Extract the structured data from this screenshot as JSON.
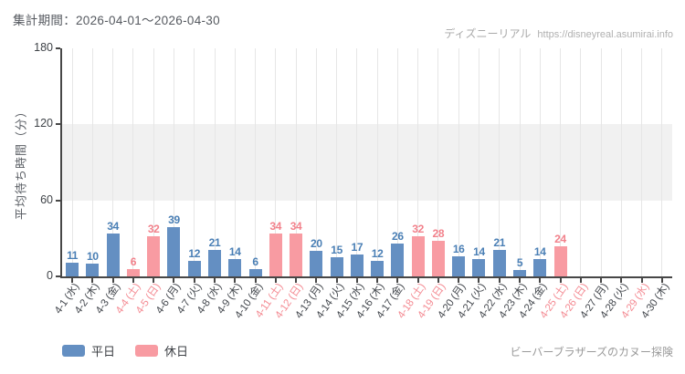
{
  "header": {
    "period_label": "集計期間：2026-04-01～2026-04-30",
    "watermark_brand": "ディズニーリアル",
    "watermark_url": "https://disneyreal.asumirai.info"
  },
  "footer": {
    "attraction_name": "ビーバーブラザーズのカヌー探険"
  },
  "legend": [
    {
      "label": "平日",
      "series": "weekday"
    },
    {
      "label": "休日",
      "series": "holiday"
    }
  ],
  "colors": {
    "weekday_bar": "#648fc2",
    "holiday_bar": "#f89ba2",
    "weekday_value_label": "#4a7fb5",
    "holiday_value_label": "#f2818b",
    "date_label": "#45494f",
    "date_label_holiday": "#f48b93",
    "axis": "#474747",
    "grid": "#e6e6e6",
    "band": "#f1f1f1"
  },
  "chart_data": {
    "type": "bar",
    "title": "",
    "xlabel": "",
    "ylabel": "平均待ち時間（分）",
    "ylim": [
      0,
      180
    ],
    "yticks": [
      0,
      60,
      120,
      180
    ],
    "shaded_band": [
      60,
      120
    ],
    "grid": "vertical gridline per category; horizontal shaded band between 60 and 120",
    "legend_position": "bottom-left",
    "days": [
      {
        "date": "4-1 (水)",
        "value": 11,
        "series": "weekday",
        "red": false
      },
      {
        "date": "4-2 (木)",
        "value": 10,
        "series": "weekday",
        "red": false
      },
      {
        "date": "4-3 (金)",
        "value": 34,
        "series": "weekday",
        "red": false
      },
      {
        "date": "4-4 (土)",
        "value": 6,
        "series": "holiday",
        "red": true
      },
      {
        "date": "4-5 (日)",
        "value": 32,
        "series": "holiday",
        "red": true
      },
      {
        "date": "4-6 (月)",
        "value": 39,
        "series": "weekday",
        "red": false
      },
      {
        "date": "4-7 (火)",
        "value": 12,
        "series": "weekday",
        "red": false
      },
      {
        "date": "4-8 (水)",
        "value": 21,
        "series": "weekday",
        "red": false
      },
      {
        "date": "4-9 (木)",
        "value": 14,
        "series": "weekday",
        "red": false
      },
      {
        "date": "4-10 (金)",
        "value": 6,
        "series": "weekday",
        "red": false
      },
      {
        "date": "4-11 (土)",
        "value": 34,
        "series": "holiday",
        "red": true
      },
      {
        "date": "4-12 (日)",
        "value": 34,
        "series": "holiday",
        "red": true
      },
      {
        "date": "4-13 (月)",
        "value": 20,
        "series": "weekday",
        "red": false
      },
      {
        "date": "4-14 (火)",
        "value": 15,
        "series": "weekday",
        "red": false
      },
      {
        "date": "4-15 (水)",
        "value": 17,
        "series": "weekday",
        "red": false
      },
      {
        "date": "4-16 (木)",
        "value": 12,
        "series": "weekday",
        "red": false
      },
      {
        "date": "4-17 (金)",
        "value": 26,
        "series": "weekday",
        "red": false
      },
      {
        "date": "4-18 (土)",
        "value": 32,
        "series": "holiday",
        "red": true
      },
      {
        "date": "4-19 (日)",
        "value": 28,
        "series": "holiday",
        "red": true
      },
      {
        "date": "4-20 (月)",
        "value": 16,
        "series": "weekday",
        "red": false
      },
      {
        "date": "4-21 (火)",
        "value": 14,
        "series": "weekday",
        "red": false
      },
      {
        "date": "4-22 (水)",
        "value": 21,
        "series": "weekday",
        "red": false
      },
      {
        "date": "4-23 (木)",
        "value": 5,
        "series": "weekday",
        "red": false
      },
      {
        "date": "4-24 (金)",
        "value": 14,
        "series": "weekday",
        "red": false
      },
      {
        "date": "4-25 (土)",
        "value": 24,
        "series": "holiday",
        "red": true
      },
      {
        "date": "4-26 (日)",
        "value": null,
        "series": null,
        "red": true
      },
      {
        "date": "4-27 (月)",
        "value": null,
        "series": null,
        "red": false
      },
      {
        "date": "4-28 (火)",
        "value": null,
        "series": null,
        "red": false
      },
      {
        "date": "4-29 (水)",
        "value": null,
        "series": null,
        "red": true
      },
      {
        "date": "4-30 (木)",
        "value": null,
        "series": null,
        "red": false
      }
    ]
  }
}
